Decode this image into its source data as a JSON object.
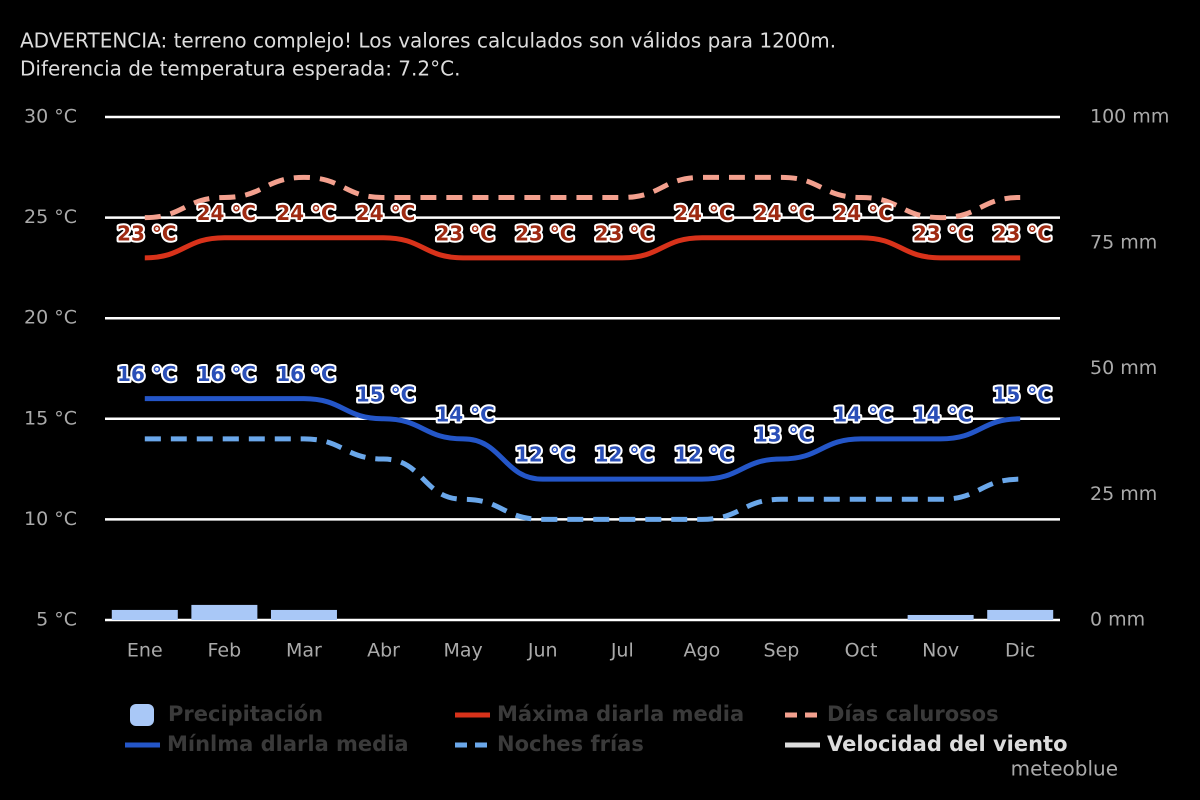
{
  "chart_data": {
    "type": "line",
    "warning": [
      "ADVERTENCIA: terreno complejo! Los valores calculados son válidos para 1200m.",
      "Diferencia de temperatura esperada: 7.2°C."
    ],
    "categories": [
      "Ene",
      "Feb",
      "Mar",
      "Abr",
      "May",
      "Jun",
      "Jul",
      "Ago",
      "Sep",
      "Oct",
      "Nov",
      "Dic"
    ],
    "ylim": [
      5,
      30
    ],
    "yticks": [
      {
        "value": 30,
        "label": "30 °C"
      },
      {
        "value": 25,
        "label": "25 °C"
      },
      {
        "value": 20,
        "label": "20 °C"
      },
      {
        "value": 15,
        "label": "15 °C"
      },
      {
        "value": 10,
        "label": "10 °C"
      },
      {
        "value": 5,
        "label": "5 °C"
      }
    ],
    "y2lim": [
      0,
      100
    ],
    "y2ticks": [
      {
        "value": 100,
        "label": "100 mm"
      },
      {
        "value": 75,
        "label": "75 mm"
      },
      {
        "value": 50,
        "label": "50 mm"
      },
      {
        "value": 25,
        "label": "25 mm"
      },
      {
        "value": 0,
        "label": "0 mm"
      }
    ],
    "grid": true,
    "series": [
      {
        "name": "Precipitación",
        "type": "bar",
        "axis": "y2",
        "color": "#a9c8f7",
        "values": [
          2,
          3,
          2,
          0,
          0,
          0,
          0,
          0,
          0,
          0,
          1,
          2
        ]
      },
      {
        "name": "Máxima diarla media",
        "color": "#d8321a",
        "values": [
          23,
          24,
          24,
          24,
          23,
          23,
          23,
          24,
          24,
          24,
          23,
          23
        ],
        "value_labels": [
          "23 °C",
          "24 °C",
          "24 °C",
          "24 °C",
          "23 °C",
          "23 °C",
          "23 °C",
          "24 °C",
          "24 °C",
          "24 °C",
          "23 °C",
          "23 °C"
        ]
      },
      {
        "name": "Días calurosos",
        "color": "#f3a08e",
        "dashed": true,
        "values": [
          25,
          26,
          27,
          26,
          26,
          26,
          26,
          27,
          27,
          26,
          25,
          26
        ]
      },
      {
        "name": "Mínlma dlarla media",
        "color": "#2456c8",
        "values": [
          16,
          16,
          16,
          15,
          14,
          12,
          12,
          12,
          13,
          14,
          14,
          15
        ],
        "value_labels": [
          "16 °C",
          "16 °C",
          "16 °C",
          "15 °C",
          "14 °C",
          "12 °C",
          "12 °C",
          "12 °C",
          "13 °C",
          "14 °C",
          "14 °C",
          "15 °C"
        ]
      },
      {
        "name": "Noches frías",
        "color": "#6aa7ea",
        "dashed": true,
        "values": [
          14,
          14,
          14,
          13,
          11,
          10,
          10,
          10,
          11,
          11,
          11,
          12
        ]
      },
      {
        "name": "Velocidad del viento",
        "color": "#dddddd",
        "values": [
          null,
          null,
          null,
          null,
          null,
          null,
          null,
          null,
          null,
          null,
          null,
          null
        ]
      }
    ],
    "watermark": "meteoblue"
  }
}
